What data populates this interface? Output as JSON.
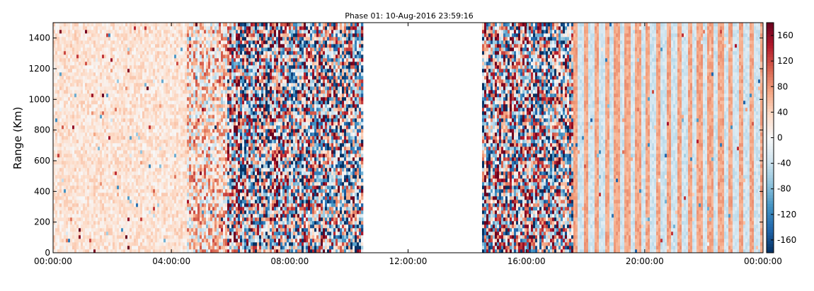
{
  "chart_data": {
    "type": "heatmap",
    "title": "Phase 01: 10-Aug-2016 23:59:16",
    "xlabel": "",
    "ylabel": "Range (Km)",
    "x_range_hours": [
      0,
      24
    ],
    "ylim": [
      0,
      1500
    ],
    "x_ticks": [
      {
        "value": 0,
        "label": "00:00:00"
      },
      {
        "value": 4,
        "label": "04:00:00"
      },
      {
        "value": 8,
        "label": "08:00:00"
      },
      {
        "value": 12,
        "label": "12:00:00"
      },
      {
        "value": 16,
        "label": "16:00:00"
      },
      {
        "value": 20,
        "label": "20:00:00"
      },
      {
        "value": 24,
        "label": "00:00:00"
      }
    ],
    "y_ticks": [
      0,
      200,
      400,
      600,
      800,
      1000,
      1200,
      1400
    ],
    "colorbar": {
      "range": [
        -180,
        180
      ],
      "ticks": [
        160,
        120,
        80,
        40,
        0,
        -40,
        -80,
        -120,
        -160
      ],
      "colormap": "RdBu_r",
      "low_color": "#053061",
      "mid_color": "#f7f7f7",
      "high_color": "#67001f"
    },
    "data_gap_hours": [
      10.5,
      14.5
    ],
    "segments": [
      {
        "from_hour": 0.0,
        "to_hour": 4.5,
        "pattern": "low-amplitude noise",
        "bias": 25,
        "spread": 25
      },
      {
        "from_hour": 4.5,
        "to_hour": 5.9,
        "pattern": "increasing noise",
        "bias": 30,
        "spread": 90
      },
      {
        "from_hour": 5.9,
        "to_hour": 10.5,
        "pattern": "high-amplitude random",
        "bias": 0,
        "spread": 180
      },
      {
        "from_hour": 14.5,
        "to_hour": 17.6,
        "pattern": "high-amplitude random",
        "bias": 0,
        "spread": 180
      },
      {
        "from_hour": 17.6,
        "to_hour": 24.0,
        "pattern": "alternating columns",
        "col_a_value": 70,
        "col_b_value": -35
      }
    ],
    "grid": false,
    "legend": "colorbar-right"
  }
}
